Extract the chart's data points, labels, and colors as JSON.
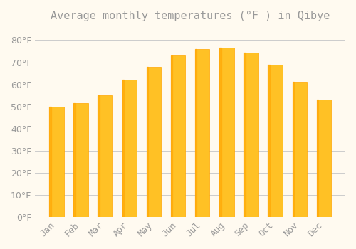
{
  "title": "Average monthly temperatures (°F ) in Qibye",
  "months": [
    "Jan",
    "Feb",
    "Mar",
    "Apr",
    "May",
    "Jun",
    "Jul",
    "Aug",
    "Sep",
    "Oct",
    "Nov",
    "Dec"
  ],
  "values": [
    50,
    51.5,
    55,
    62,
    68,
    73,
    76,
    76.5,
    74.5,
    69,
    61,
    53
  ],
  "bar_color_main": "#FFC125",
  "bar_color_edge": "#FFA500",
  "background_color": "#FFFAF0",
  "grid_color": "#CCCCCC",
  "text_color": "#999999",
  "ylim": [
    0,
    85
  ],
  "yticks": [
    0,
    10,
    20,
    30,
    40,
    50,
    60,
    70,
    80
  ],
  "ylabel_suffix": "°F",
  "title_fontsize": 11,
  "tick_fontsize": 9
}
